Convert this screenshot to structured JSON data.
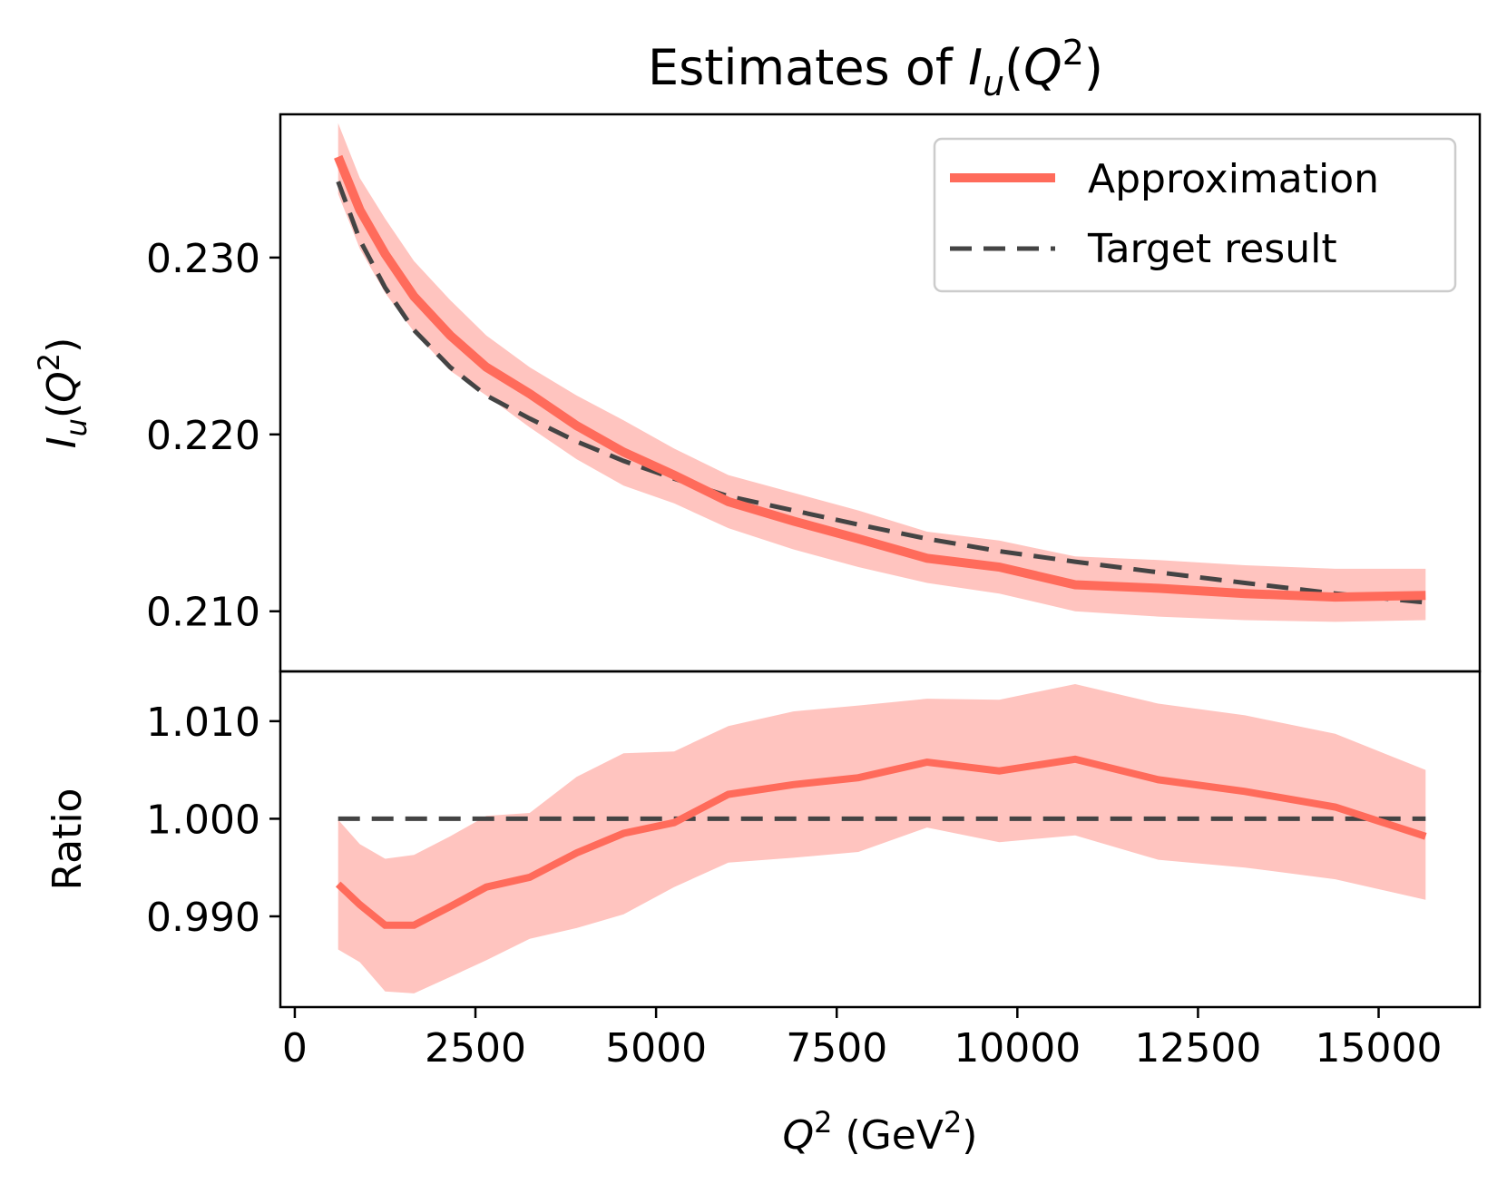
{
  "chart_data": {
    "type": "line",
    "title": {
      "prefix": "Estimates of ",
      "symbol": "I",
      "sub": "u",
      "open": "(",
      "var": "Q",
      "sup": "2",
      "close": ")"
    },
    "colors": {
      "approximation": "#ff6b5b",
      "band": "#ffc4bf",
      "target": "#444444"
    },
    "legend": {
      "placement": "top-right",
      "entries": [
        "Approximation",
        "Target result"
      ]
    },
    "xlabel": {
      "var": "Q",
      "sup": "2",
      "unit_open": " (GeV",
      "unit_sup": "2",
      "unit_close": ")"
    },
    "xlim": [
      -200,
      16400
    ],
    "x_ticks": [
      0,
      2500,
      5000,
      7500,
      10000,
      12500,
      15000
    ],
    "x_tick_labels": [
      "0",
      "2500",
      "5000",
      "7500",
      "10000",
      "12500",
      "15000"
    ],
    "x": [
      600,
      900,
      1250,
      1650,
      2150,
      2650,
      3250,
      3900,
      4550,
      5250,
      6000,
      6900,
      7800,
      8750,
      9750,
      10800,
      11950,
      13150,
      14400,
      15650
    ],
    "top_panel": {
      "ylabel": {
        "symbol": "I",
        "sub": "u",
        "open": "(",
        "var": "Q",
        "sup": "2",
        "close": ")"
      },
      "ylim": [
        0.2066,
        0.2381
      ],
      "y_ticks": [
        0.21,
        0.22,
        0.23
      ],
      "y_tick_labels": [
        "0.210",
        "0.220",
        "0.230"
      ],
      "series": [
        {
          "name": "Approximation",
          "style": "solid",
          "values": [
            0.2357,
            0.2327,
            0.2302,
            0.2278,
            0.2256,
            0.2238,
            0.2223,
            0.2205,
            0.219,
            0.2177,
            0.2162,
            0.2151,
            0.2141,
            0.213,
            0.2125,
            0.2115,
            0.2113,
            0.211,
            0.2108,
            0.2109
          ],
          "band_lower": [
            0.2336,
            0.2305,
            0.228,
            0.2258,
            0.2236,
            0.2222,
            0.2204,
            0.2186,
            0.2171,
            0.2161,
            0.2147,
            0.2135,
            0.2125,
            0.2116,
            0.211,
            0.21,
            0.2097,
            0.2095,
            0.2094,
            0.2095
          ],
          "band_upper": [
            0.2376,
            0.2345,
            0.2322,
            0.2298,
            0.2276,
            0.2256,
            0.2238,
            0.2222,
            0.2208,
            0.2192,
            0.2177,
            0.2167,
            0.2157,
            0.2145,
            0.214,
            0.2131,
            0.2129,
            0.2126,
            0.2124,
            0.2124
          ]
        },
        {
          "name": "Target result",
          "style": "dashed",
          "values": [
            0.2343,
            0.231,
            0.2283,
            0.2259,
            0.2238,
            0.2222,
            0.2209,
            0.2196,
            0.2185,
            0.2175,
            0.2165,
            0.2157,
            0.2149,
            0.2141,
            0.2134,
            0.2128,
            0.2122,
            0.2116,
            0.211,
            0.2105
          ]
        }
      ]
    },
    "bottom_panel": {
      "ylabel": "Ratio",
      "ylim": [
        0.9807,
        1.0151
      ],
      "y_ticks": [
        0.99,
        1.0,
        1.01
      ],
      "y_tick_labels": [
        "0.990",
        "1.000",
        "1.010"
      ],
      "series": [
        {
          "name": "Approximation",
          "style": "solid",
          "values": [
            0.9933,
            0.9912,
            0.9891,
            0.9891,
            0.991,
            0.993,
            0.994,
            0.9965,
            0.9985,
            0.9996,
            1.0025,
            1.0035,
            1.0042,
            1.0058,
            1.0049,
            1.0061,
            1.004,
            1.0028,
            1.0012,
            0.9982
          ],
          "band_lower": [
            0.9866,
            0.9853,
            0.9823,
            0.9821,
            0.9838,
            0.9855,
            0.9877,
            0.9888,
            0.9902,
            0.993,
            0.9955,
            0.996,
            0.9966,
            0.9991,
            0.9976,
            0.9983,
            0.9958,
            0.995,
            0.9938,
            0.9917
          ],
          "band_upper": [
            0.9999,
            0.9974,
            0.9959,
            0.9963,
            0.9982,
            1.0003,
            1.0006,
            1.0043,
            1.0067,
            1.0069,
            1.0095,
            1.011,
            1.0116,
            1.0123,
            1.0122,
            1.0138,
            1.0118,
            1.0106,
            1.0087,
            1.005
          ]
        },
        {
          "name": "Target result",
          "style": "dashed",
          "values": [
            1.0,
            1.0,
            1.0,
            1.0,
            1.0,
            1.0,
            1.0,
            1.0,
            1.0,
            1.0,
            1.0,
            1.0,
            1.0,
            1.0,
            1.0,
            1.0,
            1.0,
            1.0,
            1.0,
            1.0
          ]
        }
      ]
    }
  }
}
